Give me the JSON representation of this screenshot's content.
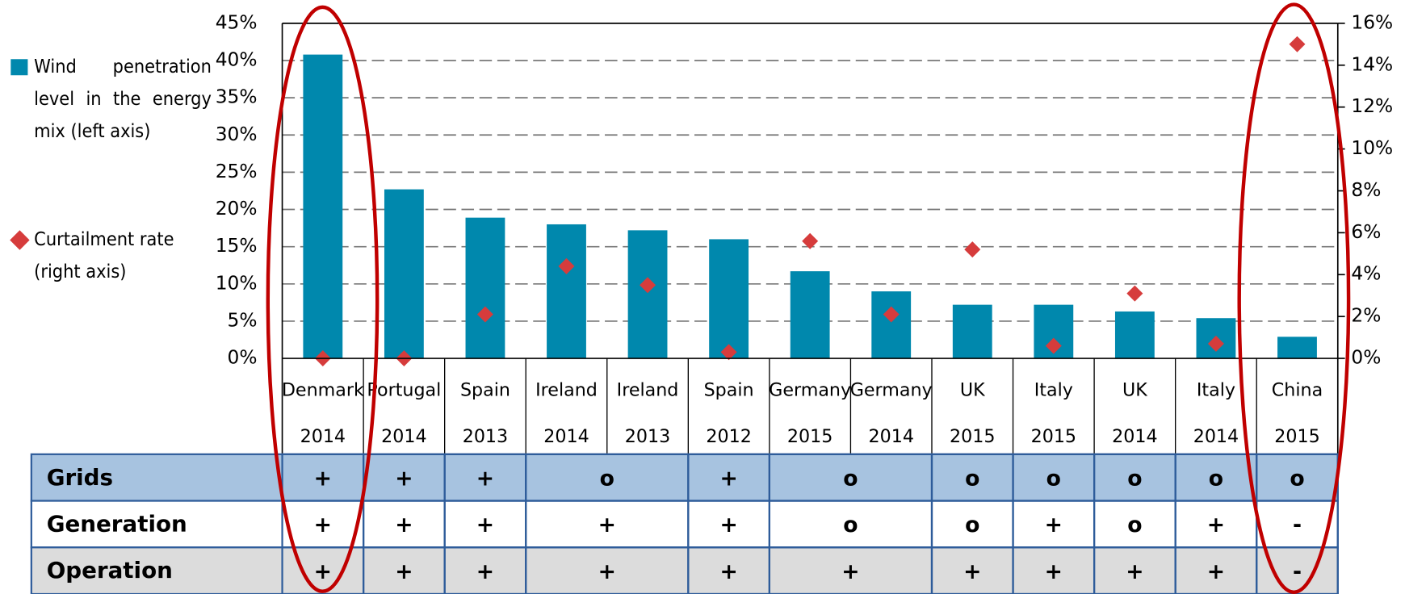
{
  "chart_data": {
    "type": "bar",
    "categories": [
      "Denmark",
      "Portugal",
      "Spain",
      "Ireland",
      "Ireland",
      "Spain",
      "Germany",
      "Germany",
      "UK",
      "Italy",
      "UK",
      "Italy",
      "China"
    ],
    "category_years": [
      "2014",
      "2014",
      "2013",
      "2014",
      "2013",
      "2012",
      "2015",
      "2014",
      "2015",
      "2015",
      "2014",
      "2014",
      "2015"
    ],
    "series": [
      {
        "name": "Wind penetration level in the energy mix (left axis)",
        "color": "#0088ad",
        "values": [
          40.8,
          22.7,
          18.9,
          18.0,
          17.2,
          16.0,
          11.7,
          9.0,
          7.2,
          7.2,
          6.3,
          5.4,
          2.9
        ]
      },
      {
        "name": "Curtailment rate (right axis)",
        "color": "#d63c3c",
        "axis": "y2",
        "marker": "diamond",
        "values": [
          0,
          0,
          2.1,
          4.4,
          3.5,
          0.3,
          5.6,
          2.1,
          5.2,
          0.6,
          3.1,
          0.7,
          15.0
        ]
      }
    ],
    "ylim": [
      0,
      45
    ],
    "yticks": [
      {
        "value": 0,
        "label": "0%"
      },
      {
        "value": 5,
        "label": "5%"
      },
      {
        "value": 10,
        "label": "10%"
      },
      {
        "value": 15,
        "label": "15%"
      },
      {
        "value": 20,
        "label": "20%"
      },
      {
        "value": 25,
        "label": "25%"
      },
      {
        "value": 30,
        "label": "30%"
      },
      {
        "value": 35,
        "label": "35%"
      },
      {
        "value": 40,
        "label": "40%"
      },
      {
        "value": 45,
        "label": "45%"
      }
    ],
    "y2lim": [
      0,
      16
    ],
    "y2ticks": [
      {
        "value": 0,
        "label": "0%"
      },
      {
        "value": 2,
        "label": "2%"
      },
      {
        "value": 4,
        "label": "4%"
      },
      {
        "value": 6,
        "label": "6%"
      },
      {
        "value": 8,
        "label": "8%"
      },
      {
        "value": 10,
        "label": "10%"
      },
      {
        "value": 12,
        "label": "12%"
      },
      {
        "value": 14,
        "label": "14%"
      },
      {
        "value": 16,
        "label": "16%"
      }
    ],
    "grid": true,
    "legend": "left"
  },
  "table": {
    "rows": [
      {
        "label": "Grids",
        "cells": [
          "+",
          "+",
          "+",
          "o",
          "+",
          "o",
          "o",
          "o",
          "o",
          "o",
          "o"
        ]
      },
      {
        "label": "Generation",
        "cells": [
          "+",
          "+",
          "+",
          "+",
          "+",
          "o",
          "o",
          "+",
          "o",
          "+",
          "-"
        ]
      },
      {
        "label": "Operation",
        "cells": [
          "+",
          "+",
          "+",
          "+",
          "+",
          "+",
          "+",
          "+",
          "+",
          "+",
          "-"
        ]
      }
    ]
  }
}
